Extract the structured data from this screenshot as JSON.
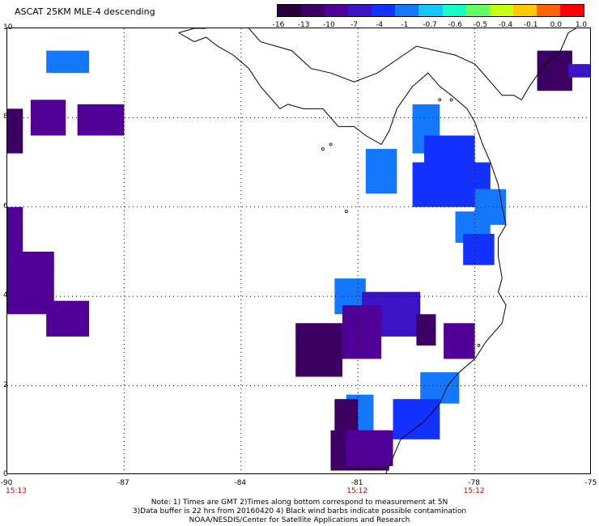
{
  "title": "ASCAT 25KM MLE-4 descending",
  "colorbar": {
    "labels": [
      "-16",
      "-13",
      "-10",
      "-7",
      "-4",
      "-1",
      "-0.7",
      "-0.6",
      "-0.5",
      "-0.4",
      "-0.1",
      "0.0",
      "1.0"
    ],
    "colors": [
      "#28003c",
      "#3c0064",
      "#500096",
      "#3c14c8",
      "#1432ff",
      "#1478ff",
      "#14c8ff",
      "#14ffc8",
      "#64ff64",
      "#c8ff14",
      "#ffc800",
      "#ff6400",
      "#ff0000"
    ]
  },
  "axes": {
    "y_labels": [
      "10",
      "8",
      "6",
      "4",
      "2",
      "0"
    ],
    "x_labels": [
      "-90",
      "-87",
      "-84",
      "-81",
      "-78",
      "-75"
    ],
    "time_labels": [
      "15:13",
      "15:12",
      "15:12"
    ]
  },
  "notes": [
    "Note: 1) Times are GMT 2)Times along bottom correspond to measurement at 5N",
    "3)Data buffer is 22 hrs from 20160420 4) Black wind barbs indicate possible contamination",
    "NOAA/NESDIS/Center for Satellite Applications and Research"
  ],
  "swath_cells": [
    {
      "lon": -89.0,
      "lat": 9.5,
      "lon2": -87.9,
      "lat2": 9.0,
      "color": "#1478ff"
    },
    {
      "lon": -89.4,
      "lat": 8.4,
      "lon2": -88.5,
      "lat2": 7.6,
      "color": "#500096"
    },
    {
      "lon": -88.2,
      "lat": 8.3,
      "lon2": -87.0,
      "lat2": 7.6,
      "color": "#500096"
    },
    {
      "lon": -90.0,
      "lat": 8.2,
      "lon2": -89.6,
      "lat2": 7.2,
      "color": "#3c0064"
    },
    {
      "lon": -90.0,
      "lat": 6.0,
      "lon2": -89.6,
      "lat2": 4.4,
      "color": "#500096"
    },
    {
      "lon": -90.0,
      "lat": 5.0,
      "lon2": -88.8,
      "lat2": 3.6,
      "color": "#500096"
    },
    {
      "lon": -89.0,
      "lat": 3.9,
      "lon2": -87.9,
      "lat2": 3.1,
      "color": "#500096"
    },
    {
      "lon": -79.6,
      "lat": 8.3,
      "lon2": -78.9,
      "lat2": 7.2,
      "color": "#1478ff"
    },
    {
      "lon": -79.3,
      "lat": 7.6,
      "lon2": -78.0,
      "lat2": 6.5,
      "color": "#1432ff"
    },
    {
      "lon": -80.8,
      "lat": 7.3,
      "lon2": -80.0,
      "lat2": 6.3,
      "color": "#1478ff"
    },
    {
      "lon": -79.6,
      "lat": 7.0,
      "lon2": -77.6,
      "lat2": 6.0,
      "color": "#1432ff"
    },
    {
      "lon": -78.0,
      "lat": 6.4,
      "lon2": -77.2,
      "lat2": 5.6,
      "color": "#1478ff"
    },
    {
      "lon": -78.5,
      "lat": 5.9,
      "lon2": -77.6,
      "lat2": 5.2,
      "color": "#1478ff"
    },
    {
      "lon": -78.3,
      "lat": 5.4,
      "lon2": -77.5,
      "lat2": 4.7,
      "color": "#1432ff"
    },
    {
      "lon": -76.4,
      "lat": 9.5,
      "lon2": -75.5,
      "lat2": 8.6,
      "color": "#3c0064"
    },
    {
      "lon": -75.6,
      "lat": 9.2,
      "lon2": -75.0,
      "lat2": 8.9,
      "color": "#3c14c8"
    },
    {
      "lon": -81.6,
      "lat": 4.4,
      "lon2": -80.8,
      "lat2": 3.6,
      "color": "#1478ff"
    },
    {
      "lon": -80.9,
      "lat": 4.1,
      "lon2": -79.4,
      "lat2": 3.1,
      "color": "#3c14c8"
    },
    {
      "lon": -81.4,
      "lat": 3.8,
      "lon2": -80.4,
      "lat2": 2.6,
      "color": "#500096"
    },
    {
      "lon": -82.6,
      "lat": 3.4,
      "lon2": -81.4,
      "lat2": 2.2,
      "color": "#3c0064"
    },
    {
      "lon": -79.5,
      "lat": 3.6,
      "lon2": -79.0,
      "lat2": 2.9,
      "color": "#3c0064"
    },
    {
      "lon": -78.8,
      "lat": 3.4,
      "lon2": -78.0,
      "lat2": 2.6,
      "color": "#500096"
    },
    {
      "lon": -79.4,
      "lat": 2.3,
      "lon2": -78.4,
      "lat2": 1.6,
      "color": "#1478ff"
    },
    {
      "lon": -81.3,
      "lat": 1.8,
      "lon2": -80.6,
      "lat2": 0.9,
      "color": "#1478ff"
    },
    {
      "lon": -80.1,
      "lat": 1.7,
      "lon2": -78.9,
      "lat2": 0.8,
      "color": "#1432ff"
    },
    {
      "lon": -81.6,
      "lat": 1.7,
      "lon2": -81.0,
      "lat2": 0.9,
      "color": "#3c0064"
    },
    {
      "lon": -81.7,
      "lat": 1.0,
      "lon2": -80.2,
      "lat2": 0.1,
      "color": "#3c0064"
    },
    {
      "lon": -81.3,
      "lat": 1.0,
      "lon2": -80.1,
      "lat2": 0.2,
      "color": "#500096"
    }
  ]
}
